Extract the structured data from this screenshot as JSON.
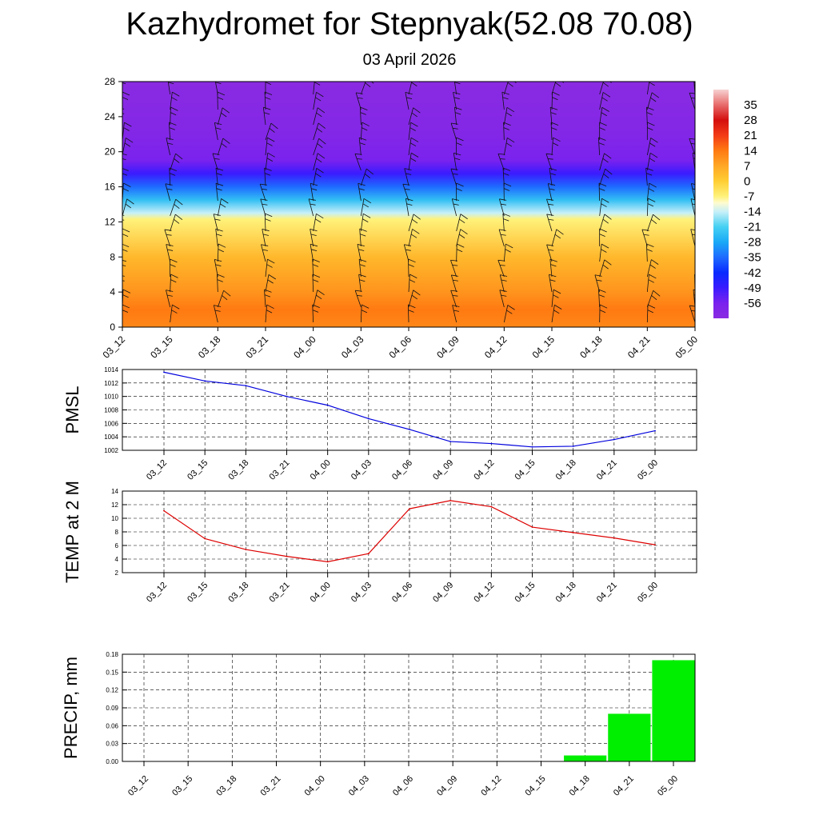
{
  "title": "Kazhydromet for Stepnyak(52.08 70.08)",
  "subtitle": "03 April 2026",
  "colors": {
    "pmsl_line": "#0000dd",
    "temp_line": "#dd0000",
    "precip_bar": "#00ee00",
    "grid": "#000000"
  },
  "chart_data": [
    {
      "type": "heatmap",
      "name": "cross-section",
      "x_ticks": [
        "03_12",
        "03_15",
        "03_18",
        "03_21",
        "04_00",
        "04_03",
        "04_06",
        "04_09",
        "04_12",
        "04_15",
        "04_18",
        "04_21",
        "05_00"
      ],
      "y_ticks": [
        0,
        4,
        8,
        12,
        16,
        20,
        24,
        28
      ],
      "ylim": [
        0,
        28
      ],
      "colorbar_labels": [
        "35",
        "28",
        "21",
        "14",
        "7",
        "0",
        "-7",
        "-14",
        "-21",
        "-28",
        "-35",
        "-42",
        "-49",
        "-56"
      ],
      "colorbar_range": [
        -63,
        42
      ],
      "colorbar_stops": [
        {
          "v": -63,
          "c": "#8a2be2"
        },
        {
          "v": -56,
          "c": "#7a22ee"
        },
        {
          "v": -49,
          "c": "#3a1bff"
        },
        {
          "v": -42,
          "c": "#0a2aff"
        },
        {
          "v": -35,
          "c": "#1e6bff"
        },
        {
          "v": -28,
          "c": "#19a9f6"
        },
        {
          "v": -21,
          "c": "#45d0f3"
        },
        {
          "v": -14,
          "c": "#c8f0f8"
        },
        {
          "v": -10,
          "c": "#fffbd0"
        },
        {
          "v": -7,
          "c": "#fff27a"
        },
        {
          "v": 0,
          "c": "#ffce33"
        },
        {
          "v": 7,
          "c": "#ffa726"
        },
        {
          "v": 14,
          "c": "#ff7a12"
        },
        {
          "v": 21,
          "c": "#f33b17"
        },
        {
          "v": 28,
          "c": "#d40f0f"
        },
        {
          "v": 35,
          "c": "#e86c6c"
        },
        {
          "v": 42,
          "c": "#f7d2d2"
        }
      ],
      "profile": [
        {
          "h": 0,
          "v": 12
        },
        {
          "h": 2,
          "v": 14
        },
        {
          "h": 4,
          "v": 10
        },
        {
          "h": 8,
          "v": 4
        },
        {
          "h": 12.3,
          "v": -7
        },
        {
          "h": 13,
          "v": -14
        },
        {
          "h": 14.5,
          "v": -24
        },
        {
          "h": 16,
          "v": -35
        },
        {
          "h": 17.5,
          "v": -49
        },
        {
          "h": 19,
          "v": -56
        },
        {
          "h": 22,
          "v": -60
        },
        {
          "h": 28,
          "v": -63
        }
      ]
    },
    {
      "type": "line",
      "name": "pmsl",
      "ylabel": "PMSL",
      "categories": [
        "03_12",
        "03_15",
        "03_18",
        "03_21",
        "04_00",
        "04_03",
        "04_06",
        "04_09",
        "04_12",
        "04_15",
        "04_18",
        "04_21",
        "05_00"
      ],
      "values": [
        1013.6,
        1012.3,
        1011.6,
        1010.0,
        1008.7,
        1006.7,
        1005.1,
        1003.3,
        1003.0,
        1002.5,
        1002.6,
        1003.6,
        1004.9
      ],
      "ylim": [
        1002,
        1014
      ],
      "yticks": [
        "1002",
        "1004",
        "1006",
        "1008",
        "1010",
        "1012",
        "1014"
      ],
      "grid": true
    },
    {
      "type": "line",
      "name": "temp",
      "ylabel": "TEMP at 2 M",
      "categories": [
        "03_12",
        "03_15",
        "03_18",
        "03_21",
        "04_00",
        "04_03",
        "04_06",
        "04_09",
        "04_12",
        "04_15",
        "04_18",
        "04_21",
        "05_00"
      ],
      "values": [
        11.1,
        7.0,
        5.4,
        4.4,
        3.6,
        4.8,
        11.4,
        12.6,
        11.7,
        8.7,
        7.9,
        7.1,
        6.1
      ],
      "ylim": [
        2,
        14
      ],
      "yticks": [
        "2",
        "4",
        "6",
        "8",
        "10",
        "12",
        "14"
      ],
      "grid": true
    },
    {
      "type": "bar",
      "name": "precip",
      "ylabel": "PRECIP, mm",
      "categories": [
        "03_12",
        "03_15",
        "03_18",
        "03_21",
        "04_00",
        "04_03",
        "04_06",
        "04_09",
        "04_12",
        "04_15",
        "04_18",
        "04_21",
        "05_00"
      ],
      "values": [
        0,
        0,
        0,
        0,
        0,
        0,
        0,
        0,
        0,
        0,
        0.01,
        0.08,
        0.17
      ],
      "ylim": [
        0,
        0.18
      ],
      "yticks": [
        "0.00",
        "0.03",
        "0.06",
        "0.09",
        "0.12",
        "0.15",
        "0.18"
      ],
      "grid": true
    }
  ]
}
